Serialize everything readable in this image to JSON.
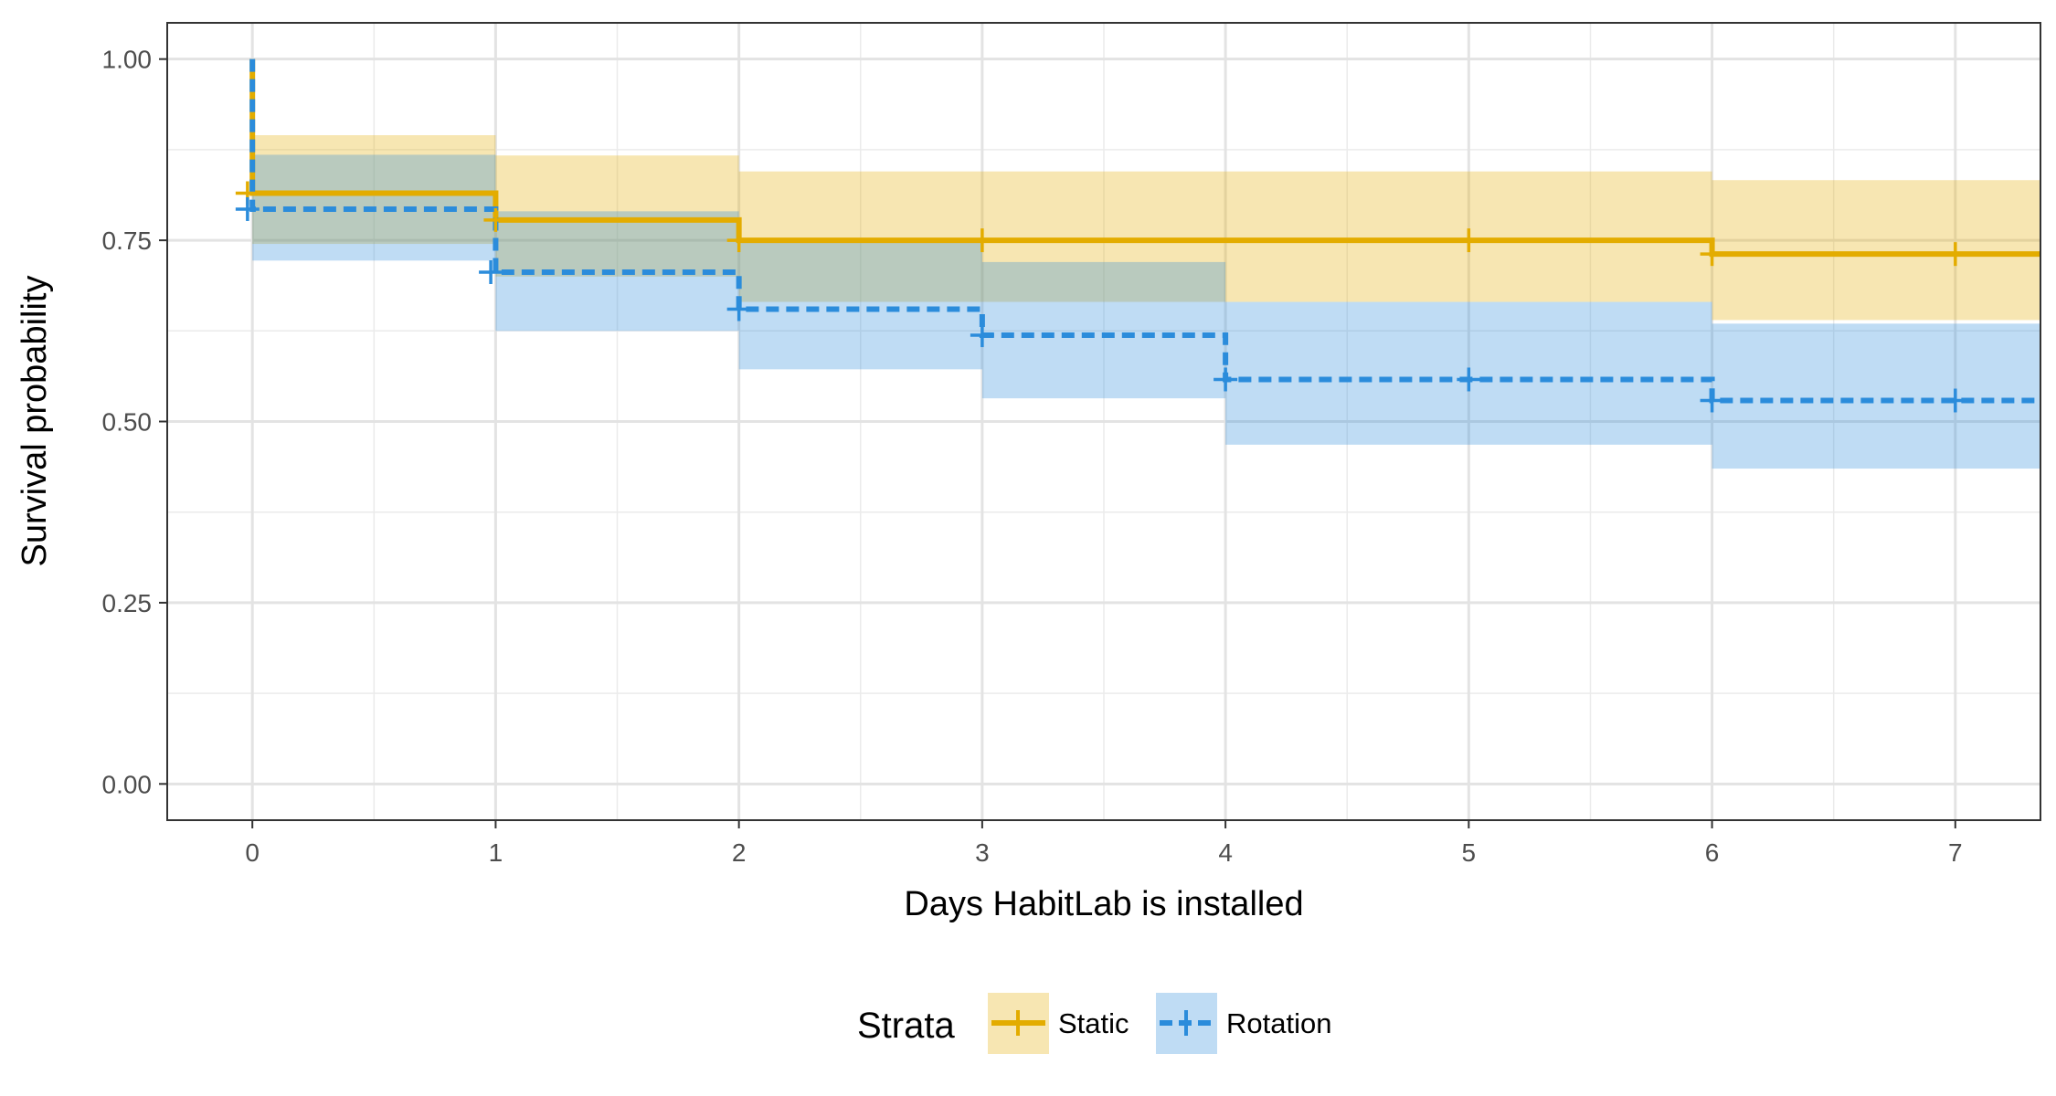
{
  "chart_data": {
    "type": "line",
    "subtype": "kaplan-meier-step",
    "xlabel": "Days HabitLab is installed",
    "ylabel": "Survival probability",
    "xlim": [
      -0.35,
      7.35
    ],
    "ylim": [
      -0.05,
      1.05
    ],
    "x_ticks": [
      0,
      1,
      2,
      3,
      4,
      5,
      6,
      7
    ],
    "x_tick_labels": [
      "0",
      "1",
      "2",
      "3",
      "4",
      "5",
      "6",
      "7"
    ],
    "y_ticks": [
      0,
      0.25,
      0.5,
      0.75,
      1.0
    ],
    "y_tick_labels": [
      "0.00",
      "0.25",
      "0.50",
      "0.75",
      "1.00"
    ],
    "grid": true,
    "legend": {
      "title": "Strata",
      "position": "bottom"
    },
    "series": [
      {
        "name": "Static",
        "color": "#E3AC00",
        "line_style": "solid",
        "steps": [
          {
            "x": 0,
            "y": 1.0
          },
          {
            "x": 0,
            "y": 0.815
          },
          {
            "x": 1,
            "y": 0.778
          },
          {
            "x": 2,
            "y": 0.75
          },
          {
            "x": 6,
            "y": 0.731
          },
          {
            "x": 7.35,
            "y": 0.731
          }
        ],
        "ci": [
          {
            "x0": 0,
            "x1": 1,
            "lower": 0.745,
            "upper": 0.895
          },
          {
            "x0": 1,
            "x1": 2,
            "lower": 0.7,
            "upper": 0.867
          },
          {
            "x0": 2,
            "x1": 6,
            "lower": 0.665,
            "upper": 0.845
          },
          {
            "x0": 6,
            "x1": 7.35,
            "lower": 0.64,
            "upper": 0.833
          }
        ],
        "censor_marks": [
          {
            "x": -0.02,
            "y": 0.815
          },
          {
            "x": 1.0,
            "y": 0.778
          },
          {
            "x": 2.0,
            "y": 0.75
          },
          {
            "x": 3.0,
            "y": 0.75
          },
          {
            "x": 5.0,
            "y": 0.75
          },
          {
            "x": 6.0,
            "y": 0.731
          },
          {
            "x": 7.0,
            "y": 0.731
          }
        ]
      },
      {
        "name": "Rotation",
        "color": "#2B8CDB",
        "line_style": "dashed",
        "steps": [
          {
            "x": 0,
            "y": 1.0
          },
          {
            "x": 0,
            "y": 0.793
          },
          {
            "x": 1,
            "y": 0.706
          },
          {
            "x": 2,
            "y": 0.655
          },
          {
            "x": 3,
            "y": 0.619
          },
          {
            "x": 4,
            "y": 0.558
          },
          {
            "x": 6,
            "y": 0.529
          },
          {
            "x": 7.35,
            "y": 0.529
          }
        ],
        "ci": [
          {
            "x0": 0,
            "x1": 1,
            "lower": 0.722,
            "upper": 0.868
          },
          {
            "x0": 1,
            "x1": 2,
            "lower": 0.625,
            "upper": 0.79
          },
          {
            "x0": 2,
            "x1": 3,
            "lower": 0.572,
            "upper": 0.75
          },
          {
            "x0": 3,
            "x1": 4,
            "lower": 0.532,
            "upper": 0.72
          },
          {
            "x0": 4,
            "x1": 6,
            "lower": 0.468,
            "upper": 0.665
          },
          {
            "x0": 6,
            "x1": 7.35,
            "lower": 0.435,
            "upper": 0.635
          }
        ],
        "censor_marks": [
          {
            "x": -0.02,
            "y": 0.793
          },
          {
            "x": 0.98,
            "y": 0.706
          },
          {
            "x": 2.0,
            "y": 0.655
          },
          {
            "x": 3.0,
            "y": 0.619
          },
          {
            "x": 4.0,
            "y": 0.558
          },
          {
            "x": 5.0,
            "y": 0.558
          },
          {
            "x": 6.0,
            "y": 0.529
          },
          {
            "x": 7.0,
            "y": 0.529
          }
        ]
      }
    ]
  }
}
